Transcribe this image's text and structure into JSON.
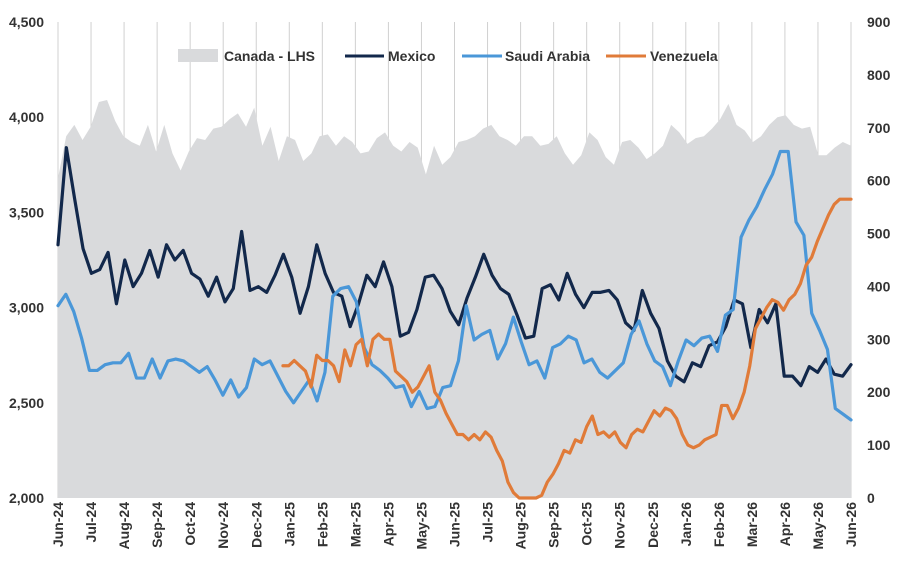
{
  "chart_data": {
    "type": "line",
    "title": "",
    "x_labels": [
      "Jun-24",
      "Jul-24",
      "Aug-24",
      "Sep-24",
      "Oct-24",
      "Nov-24",
      "Dec-24",
      "Jan-25",
      "Feb-25",
      "Mar-25",
      "Apr-25",
      "May-25",
      "Jun-25",
      "Jul-25",
      "Aug-25",
      "Sep-25",
      "Oct-25",
      "Nov-25",
      "Dec-25",
      "Jan-26",
      "Feb-26",
      "Mar-26",
      "Apr-26",
      "May-26",
      "Jun-26"
    ],
    "left_axis": {
      "ylim": [
        2000,
        4500
      ],
      "ticks": [
        "2,000",
        "2,500",
        "3,000",
        "3,500",
        "4,000",
        "4,500"
      ],
      "tick_values": [
        2000,
        2500,
        3000,
        3500,
        4000,
        4500
      ]
    },
    "right_axis": {
      "ylim": [
        0,
        900
      ],
      "ticks": [
        "0",
        "100",
        "200",
        "300",
        "400",
        "500",
        "600",
        "700",
        "800",
        "900"
      ],
      "tick_values": [
        0,
        100,
        200,
        300,
        400,
        500,
        600,
        700,
        800,
        900
      ]
    },
    "grid": "vertical",
    "legend_position": "top",
    "series": [
      {
        "name": "Canada - LHS",
        "kind": "area",
        "axis": "left",
        "color": "#d9dadc",
        "values": [
          3680,
          3900,
          3960,
          3880,
          3950,
          4080,
          4090,
          3980,
          3900,
          3870,
          3850,
          3960,
          3820,
          3960,
          3810,
          3720,
          3820,
          3890,
          3880,
          3940,
          3950,
          3990,
          4020,
          3950,
          4050,
          3850,
          3950,
          3770,
          3900,
          3880,
          3770,
          3810,
          3900,
          3910,
          3850,
          3900,
          3870,
          3810,
          3820,
          3890,
          3920,
          3850,
          3820,
          3870,
          3840,
          3700,
          3850,
          3750,
          3790,
          3870,
          3880,
          3900,
          3940,
          3960,
          3900,
          3880,
          3850,
          3900,
          3900,
          3850,
          3860,
          3900,
          3810,
          3750,
          3800,
          3920,
          3880,
          3790,
          3750,
          3870,
          3880,
          3840,
          3780,
          3810,
          3850,
          3960,
          3920,
          3860,
          3890,
          3900,
          3940,
          3990,
          4070,
          3960,
          3930,
          3870,
          3900,
          3960,
          4000,
          4010,
          3960,
          3940,
          3950,
          3800,
          3800,
          3840,
          3870,
          3850
        ]
      },
      {
        "name": "Mexico",
        "kind": "line",
        "axis": "left",
        "color": "#12284b",
        "values": [
          3330,
          3840,
          3570,
          3310,
          3180,
          3200,
          3290,
          3020,
          3250,
          3110,
          3180,
          3300,
          3160,
          3330,
          3250,
          3300,
          3180,
          3150,
          3060,
          3160,
          3030,
          3100,
          3400,
          3090,
          3110,
          3080,
          3170,
          3280,
          3160,
          2970,
          3110,
          3330,
          3180,
          3080,
          3060,
          2900,
          3020,
          3170,
          3110,
          3240,
          3110,
          2850,
          2870,
          2990,
          3160,
          3170,
          3100,
          2980,
          2910,
          3050,
          3160,
          3280,
          3170,
          3100,
          3070,
          2960,
          2840,
          2850,
          3100,
          3120,
          3040,
          3180,
          3070,
          3000,
          3080,
          3080,
          3090,
          3040,
          2920,
          2880,
          3090,
          2970,
          2890,
          2720,
          2640,
          2610,
          2710,
          2690,
          2800,
          2820,
          2900,
          3040,
          3020,
          2790,
          2990,
          2920,
          3020,
          2640,
          2640,
          2590,
          2690,
          2660,
          2730,
          2650,
          2640,
          2700
        ]
      },
      {
        "name": "Saudi Arabia",
        "kind": "line",
        "axis": "left",
        "color": "#4a97d8",
        "values": [
          3010,
          3070,
          2980,
          2840,
          2670,
          2670,
          2700,
          2710,
          2710,
          2760,
          2630,
          2630,
          2730,
          2630,
          2720,
          2730,
          2720,
          2690,
          2660,
          2690,
          2620,
          2540,
          2620,
          2530,
          2580,
          2730,
          2700,
          2720,
          2640,
          2560,
          2500,
          2560,
          2620,
          2510,
          2660,
          3060,
          3100,
          3110,
          3030,
          2790,
          2700,
          2670,
          2630,
          2580,
          2590,
          2480,
          2560,
          2470,
          2480,
          2580,
          2590,
          2720,
          3010,
          2830,
          2860,
          2880,
          2730,
          2810,
          2950,
          2820,
          2700,
          2720,
          2630,
          2790,
          2810,
          2850,
          2830,
          2710,
          2730,
          2660,
          2630,
          2670,
          2710,
          2860,
          2930,
          2810,
          2720,
          2690,
          2590,
          2720,
          2830,
          2800,
          2840,
          2850,
          2770,
          2960,
          2990,
          3370,
          3460,
          3530,
          3620,
          3700,
          3820,
          3820,
          3450,
          3380,
          2970,
          2880,
          2780,
          2470,
          2440,
          2410
        ]
      },
      {
        "name": "Venezuela",
        "kind": "line",
        "axis": "right",
        "color": "#e07b39",
        "values": [
          null,
          null,
          null,
          null,
          null,
          null,
          null,
          null,
          null,
          null,
          null,
          null,
          null,
          null,
          null,
          null,
          null,
          null,
          null,
          null,
          null,
          null,
          null,
          null,
          null,
          null,
          null,
          null,
          null,
          null,
          null,
          null,
          null,
          null,
          null,
          null,
          null,
          null,
          null,
          null,
          250,
          250,
          260,
          250,
          240,
          210,
          270,
          260,
          260,
          250,
          220,
          280,
          250,
          290,
          300,
          250,
          300,
          310,
          300,
          300,
          240,
          230,
          220,
          200,
          210,
          230,
          250,
          200,
          185,
          160,
          140,
          120,
          120,
          110,
          120,
          110,
          125,
          115,
          90,
          70,
          30,
          10,
          0,
          0,
          0,
          0,
          5,
          30,
          45,
          65,
          90,
          85,
          110,
          105,
          135,
          155,
          120,
          125,
          115,
          125,
          105,
          95,
          120,
          130,
          125,
          145,
          165,
          155,
          170,
          165,
          150,
          120,
          100,
          95,
          100,
          110,
          115,
          120,
          175,
          175,
          150,
          170,
          200,
          250,
          320,
          340,
          360,
          375,
          370,
          355,
          375,
          385,
          405,
          440,
          455,
          485,
          510,
          535,
          555,
          565,
          565,
          565
        ]
      }
    ],
    "legend": [
      "Canada - LHS",
      "Mexico",
      "Saudi Arabia",
      "Venezuela"
    ]
  }
}
